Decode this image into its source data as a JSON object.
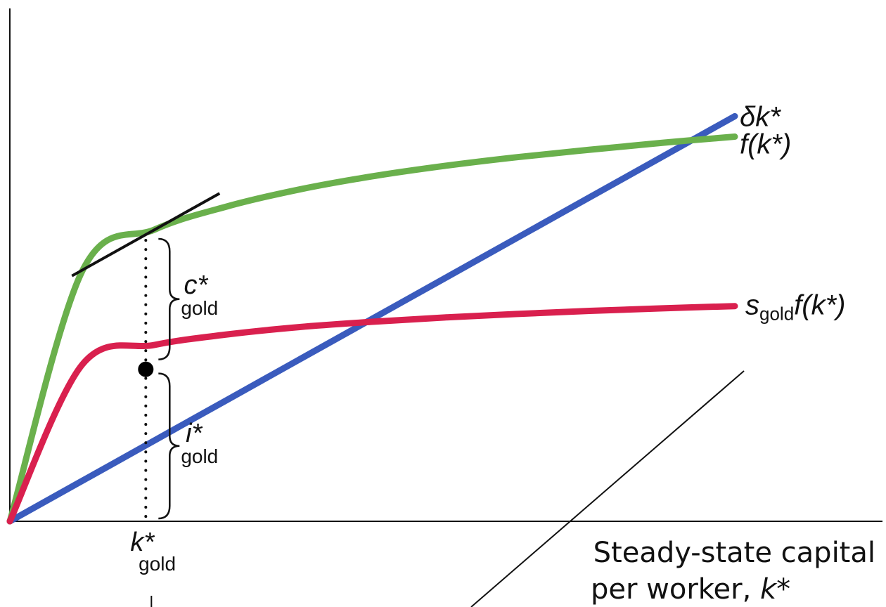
{
  "chart_data": {
    "type": "line",
    "title": "",
    "xlabel": {
      "line1": "Steady-state capital",
      "line2": "per worker, ",
      "var": "k*"
    },
    "ylabel": "",
    "grid": false,
    "x": [
      0,
      20,
      40,
      60,
      80,
      100,
      120,
      140,
      160,
      180,
      200
    ],
    "xlim": [
      0,
      200
    ],
    "ylim": [
      0,
      100
    ],
    "series": [
      {
        "name": "δk*",
        "color": "#3a5bbd",
        "values": [
          0,
          9.3,
          18.6,
          27.9,
          37.2,
          46.5,
          55.8,
          65.1,
          74.4,
          83.7,
          93.0
        ]
      },
      {
        "name": "f(k*)",
        "color": "#6ab04c",
        "values": [
          0,
          57.5,
          67.0,
          72.3,
          76.2,
          79.2,
          81.6,
          83.6,
          85.3,
          86.9,
          88.3
        ]
      },
      {
        "name": "s_gold f(k*)",
        "color": "#d9204e",
        "values": [
          0,
          36.0,
          40.5,
          42.9,
          44.6,
          45.8,
          46.8,
          47.6,
          48.3,
          48.9,
          49.4
        ]
      }
    ],
    "line_labels": [
      {
        "series": "δk*",
        "text": "δk*"
      },
      {
        "series": "f(k*)",
        "text": "f(k*)"
      },
      {
        "series": "s_gold f(k*)",
        "base": "s",
        "sub": "gold",
        "rest": "f(k*)"
      }
    ],
    "golden_rule": {
      "k_gold": 37.5,
      "point_value": 34.9,
      "tick_label": {
        "base": "k*",
        "sub": "gold"
      },
      "consumption_label": {
        "base": "c*",
        "sub": "gold"
      },
      "investment_label": {
        "base": "i*",
        "sub": "gold"
      }
    }
  }
}
